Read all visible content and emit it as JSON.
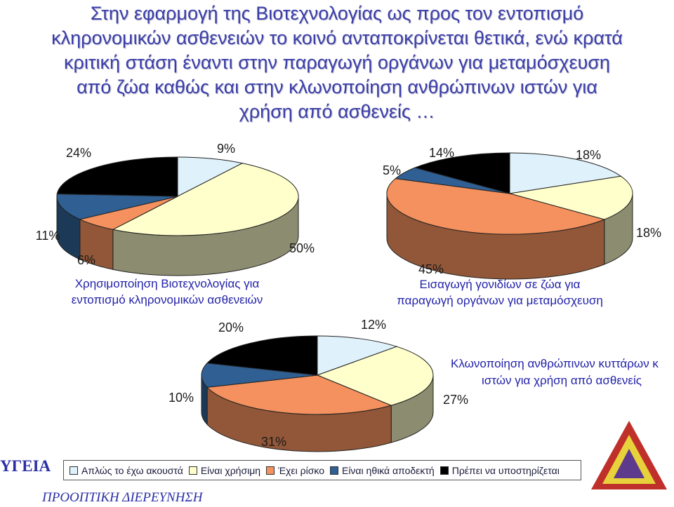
{
  "title_lines": [
    "Στην εφαρμογή της Βιοτεχνολογίας ως προς τον εντοπισμό",
    "κληρονομικών ασθενειών το κοινό ανταποκρίνεται θετικά, ενώ κρατά",
    "κριτική στάση έναντι στην παραγωγή οργάνων για μεταμόσχευση",
    "από ζώα καθώς και στην κλωνοποίηση ανθρώπινων ιστών για",
    "χρήση από ασθενείς …"
  ],
  "colors": [
    "#dff1fa",
    "#ffffcc",
    "#f4915e",
    "#2f5f93",
    "#000000"
  ],
  "legend": [
    "Απλώς το έχω ακουστά",
    "Είναι χρήσιμη",
    "Έχει ρίσκο",
    "Είναι ηθικά αποδεκτή",
    "Πρέπει να υποστηρίζεται"
  ],
  "chart_data": [
    {
      "type": "pie",
      "title": "Χρησιμοποίηση Βιοτεχνολογίας για εντοπισμό κληρονομικών ασθενειών",
      "categories": [
        "Απλώς το έχω ακουστά",
        "Είναι χρήσιμη",
        "Έχει ρίσκο",
        "Είναι ηθικά αποδεκτή",
        "Πρέπει να υποστηρίζεται"
      ],
      "values": [
        9,
        50,
        6,
        11,
        24
      ],
      "labels": [
        "9%",
        "50%",
        "6%",
        "11%",
        "24%"
      ]
    },
    {
      "type": "pie",
      "title": "Εισαγωγή γονιδίων σε ζώα για παραγωγή οργάνων για μεταμόσχευση",
      "categories": [
        "Απλώς το έχω ακουστά",
        "Είναι χρήσιμη",
        "Έχει ρίσκο",
        "Είναι ηθικά αποδεκτή",
        "Πρέπει να υποστηρίζεται"
      ],
      "values": [
        18,
        18,
        45,
        5,
        14
      ],
      "labels": [
        "18%",
        "18%",
        "45%",
        "5%",
        "14%"
      ]
    },
    {
      "type": "pie",
      "title": "Κλωνοποίηση ανθρώπινων κυττάρων κ ιστών για χρήση από ασθενείς",
      "categories": [
        "Απλώς το έχω ακουστά",
        "Είναι χρήσιμη",
        "Έχει ρίσκο",
        "Είναι ηθικά αποδεκτή",
        "Πρέπει να υποστηρίζεται"
      ],
      "values": [
        12,
        27,
        31,
        10,
        20
      ],
      "labels": [
        "12%",
        "27%",
        "31%",
        "10%",
        "20%"
      ]
    }
  ],
  "brand": {
    "left": "ΥΓΕΙΑ",
    "bottom": "ΠΡΟΟΠΤΙΚΗ ΔΙΕΡΕΥΝΗΣΗ",
    "logo_text": "ΠΡΟΟΠΤΙΚΗ ΔΙΕΡΕΥΝΗΣΗ"
  }
}
